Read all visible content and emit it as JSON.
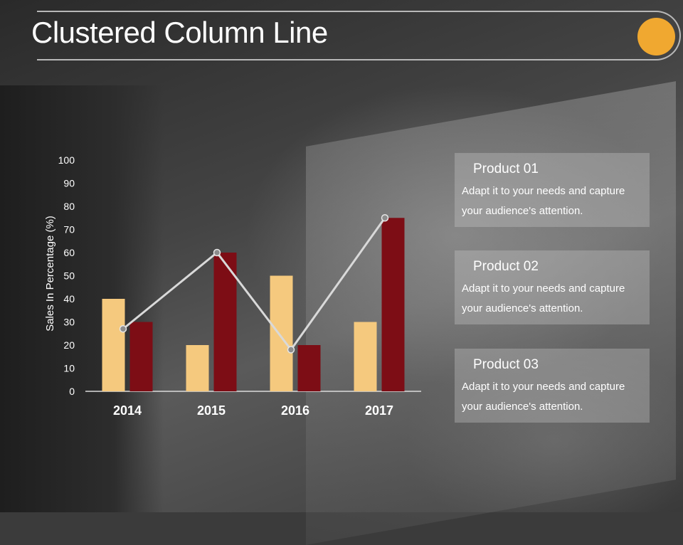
{
  "slide": {
    "title": "Clustered Column Line"
  },
  "colors": {
    "accent_circle": "#f0a830",
    "series_light": "#f5c97e",
    "series_dark": "#7d0d15",
    "line": "#d9d9d9"
  },
  "panels": [
    {
      "title": "Product 01",
      "text": "Adapt it to your needs and capture your audience's attention."
    },
    {
      "title": "Product 02",
      "text": "Adapt it to your needs and capture your audience's attention."
    },
    {
      "title": "Product 03",
      "text": "Adapt it to your needs and capture your audience's attention."
    }
  ],
  "chart_data": {
    "type": "bar",
    "categories": [
      "2014",
      "2015",
      "2016",
      "2017"
    ],
    "series": [
      {
        "type": "bar",
        "color": "#f5c97e",
        "values": [
          40,
          20,
          50,
          30
        ]
      },
      {
        "type": "bar",
        "color": "#7d0d15",
        "values": [
          30,
          60,
          20,
          75
        ]
      },
      {
        "type": "line",
        "color": "#d9d9d9",
        "values": [
          27,
          60,
          18,
          75
        ]
      }
    ],
    "ylabel": "Sales In Percentage (%)",
    "ylim": [
      0,
      100
    ],
    "yticks": [
      0,
      10,
      20,
      30,
      40,
      50,
      60,
      70,
      80,
      90,
      100
    ],
    "grid": false,
    "legend": "none"
  }
}
